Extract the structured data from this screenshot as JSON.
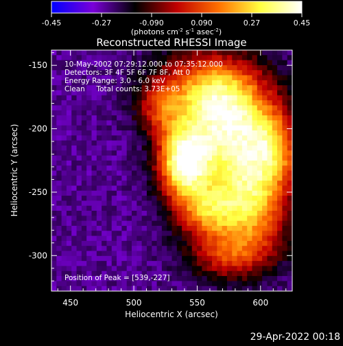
{
  "chart_data": {
    "type": "heatmap",
    "title": "Reconstructed RHESSI Image",
    "xlabel": "Heliocentric X (arcsec)",
    "ylabel": "Heliocentric Y (arcsec)",
    "xlim": [
      435,
      625
    ],
    "ylim": [
      -328,
      -138
    ],
    "x_ticks": [
      "450",
      "500",
      "550",
      "600"
    ],
    "x_tick_values": [
      450,
      500,
      550,
      600
    ],
    "y_ticks": [
      "-150",
      "-200",
      "-250",
      "-300"
    ],
    "y_tick_values": [
      -150,
      -200,
      -250,
      -300
    ],
    "colorbar": {
      "range": [
        -0.45,
        0.45
      ],
      "ticks": [
        "-0.45",
        "-0.27",
        "-0.090",
        "0.090",
        "0.27",
        "0.45"
      ],
      "tick_values": [
        -0.45,
        -0.27,
        -0.09,
        0.09,
        0.27,
        0.45
      ],
      "unit_prefix": "(photons cm",
      "unit_exp1": "-2",
      "unit_mid": " s",
      "unit_exp2": "-1",
      "unit_mid2": " asec",
      "unit_exp3": "-2",
      "unit_suffix": ")",
      "colors": [
        "#0000ff",
        "#7a00d8",
        "#000000",
        "#c00000",
        "#ff7000",
        "#ffff40",
        "#ffffff"
      ]
    },
    "info_lines": [
      "10-May-2002 07:29:12.000 to 07:35:12.000",
      "Detectors: 3F 4F 5F 6F 7F 8F, Att 0",
      "Energy Range: 3.0 - 6.0 keV",
      "Clean     Total counts: 3.73E+05"
    ],
    "peak_label": "Position of Peak = [539,-227]",
    "peak": {
      "x": 539,
      "y": -227,
      "value": 0.45
    },
    "background_level": -0.25,
    "sources": [
      {
        "x": 539,
        "y": -227,
        "sx": 14,
        "sy": 20,
        "amp": 0.62
      },
      {
        "x": 575,
        "y": -205,
        "sx": 24,
        "sy": 28,
        "amp": 0.5
      },
      {
        "x": 560,
        "y": -170,
        "sx": 30,
        "sy": 22,
        "amp": 0.42
      },
      {
        "x": 590,
        "y": -260,
        "sx": 22,
        "sy": 26,
        "amp": 0.48
      },
      {
        "x": 555,
        "y": -265,
        "sx": 16,
        "sy": 14,
        "amp": 0.3
      },
      {
        "x": 610,
        "y": -215,
        "sx": 16,
        "sy": 22,
        "amp": 0.35
      },
      {
        "x": 575,
        "y": -300,
        "sx": 24,
        "sy": 14,
        "amp": 0.25
      },
      {
        "x": 520,
        "y": -185,
        "sx": 12,
        "sy": 14,
        "amp": 0.2
      }
    ]
  },
  "timestamp": "29-Apr-2022 00:18"
}
